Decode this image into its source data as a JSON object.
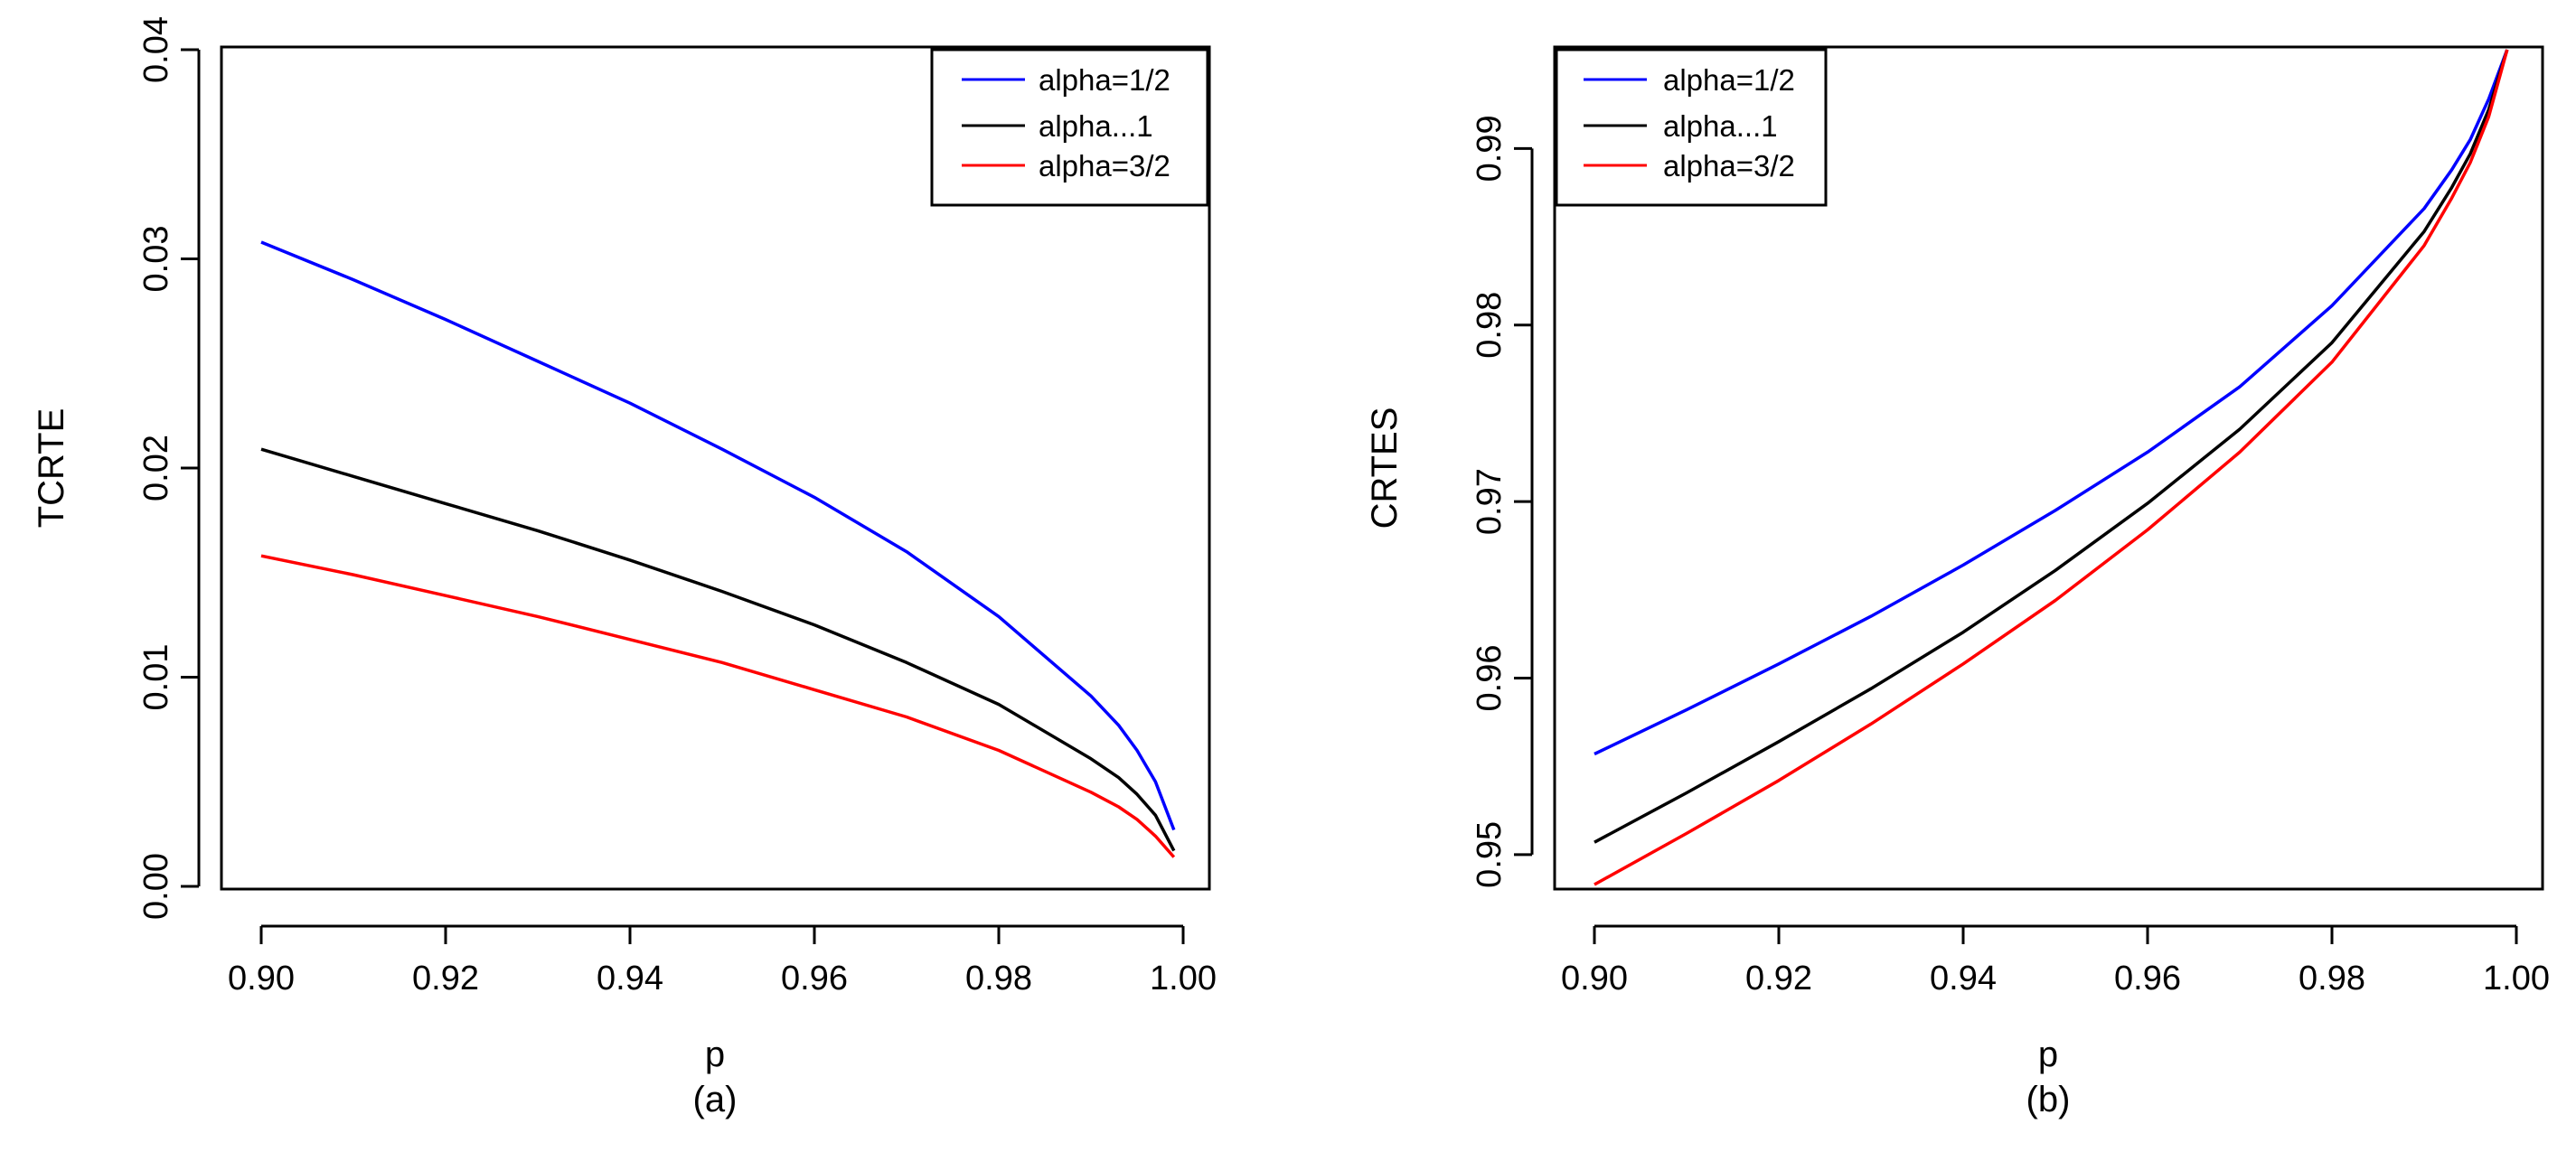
{
  "chart_data": [
    {
      "type": "line",
      "panel_label": "(a)",
      "xlabel": "p",
      "ylabel": "TCRTE",
      "xlim": [
        0.9,
        1.0
      ],
      "ylim": [
        0.0,
        0.04
      ],
      "x_ticks": [
        0.9,
        0.92,
        0.94,
        0.96,
        0.98,
        1.0
      ],
      "x_tick_labels": [
        "0.90",
        "0.92",
        "0.94",
        "0.96",
        "0.98",
        "1.00"
      ],
      "y_ticks": [
        0.0,
        0.01,
        0.02,
        0.03,
        0.04
      ],
      "y_tick_labels": [
        "0.00",
        "0.01",
        "0.02",
        "0.03",
        "0.04"
      ],
      "grid": false,
      "legend_position": "top-right",
      "x": [
        0.9,
        0.91,
        0.92,
        0.93,
        0.94,
        0.95,
        0.96,
        0.97,
        0.98,
        0.99,
        0.993,
        0.995,
        0.997,
        0.999
      ],
      "series": [
        {
          "name": "alpha=1/2",
          "color": "#0000ff",
          "values": [
            0.0308,
            0.029,
            0.0271,
            0.0251,
            0.0231,
            0.0209,
            0.0186,
            0.016,
            0.0129,
            0.0091,
            0.0077,
            0.0065,
            0.005,
            0.0027
          ]
        },
        {
          "name": "alpha...1",
          "color": "#000000",
          "values": [
            0.0209,
            0.0196,
            0.0183,
            0.017,
            0.0156,
            0.0141,
            0.0125,
            0.0107,
            0.0087,
            0.0061,
            0.0052,
            0.0044,
            0.0034,
            0.0017
          ]
        },
        {
          "name": "alpha=3/2",
          "color": "#ff0000",
          "values": [
            0.0158,
            0.0149,
            0.0139,
            0.0129,
            0.0118,
            0.0107,
            0.0094,
            0.0081,
            0.0065,
            0.0045,
            0.0038,
            0.0032,
            0.0024,
            0.0014
          ]
        }
      ]
    },
    {
      "type": "line",
      "panel_label": "(b)",
      "xlabel": "p",
      "ylabel": "CRTES",
      "xlim": [
        0.9,
        1.0
      ],
      "ylim": [
        0.9482,
        0.9956
      ],
      "x_ticks": [
        0.9,
        0.92,
        0.94,
        0.96,
        0.98,
        1.0
      ],
      "x_tick_labels": [
        "0.90",
        "0.92",
        "0.94",
        "0.96",
        "0.98",
        "1.00"
      ],
      "y_ticks": [
        0.95,
        0.96,
        0.97,
        0.98,
        0.99
      ],
      "y_tick_labels": [
        "0.95",
        "0.96",
        "0.97",
        "0.98",
        "0.99"
      ],
      "grid": false,
      "legend_position": "top-left",
      "x": [
        0.9,
        0.91,
        0.92,
        0.93,
        0.94,
        0.95,
        0.96,
        0.97,
        0.98,
        0.99,
        0.993,
        0.995,
        0.997,
        0.999
      ],
      "series": [
        {
          "name": "alpha=1/2",
          "color": "#0000ff",
          "values": [
            0.9557,
            0.9582,
            0.9608,
            0.9635,
            0.9664,
            0.9695,
            0.9728,
            0.9765,
            0.9811,
            0.9866,
            0.9888,
            0.9905,
            0.9928,
            0.9956
          ]
        },
        {
          "name": "alpha...1",
          "color": "#000000",
          "values": [
            0.9507,
            0.9535,
            0.9564,
            0.9594,
            0.9626,
            0.9661,
            0.9699,
            0.9741,
            0.979,
            0.9853,
            0.9878,
            0.9897,
            0.9922,
            0.9956
          ]
        },
        {
          "name": "alpha=3/2",
          "color": "#ff0000",
          "values": [
            0.9483,
            0.9512,
            0.9542,
            0.9574,
            0.9608,
            0.9644,
            0.9684,
            0.9728,
            0.9779,
            0.9845,
            0.9872,
            0.9892,
            0.9918,
            0.9956
          ]
        }
      ]
    }
  ]
}
